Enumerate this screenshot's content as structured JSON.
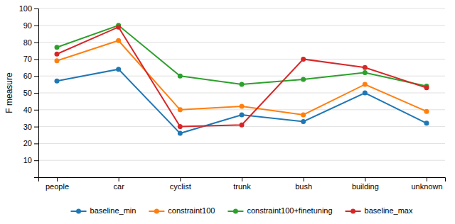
{
  "chart_data": {
    "type": "line",
    "categories": [
      "people",
      "car",
      "cyclist",
      "trunk",
      "bush",
      "building",
      "unknown"
    ],
    "series": [
      {
        "name": "baseline_min",
        "values": [
          57,
          64,
          26,
          37,
          33,
          50,
          32
        ]
      },
      {
        "name": "constraint100",
        "values": [
          69,
          81,
          40,
          42,
          37,
          55,
          39
        ]
      },
      {
        "name": "constraint100+finetuning",
        "values": [
          77,
          90,
          60,
          55,
          58,
          62,
          54
        ]
      },
      {
        "name": "baseline_max",
        "values": [
          73,
          89,
          30,
          31,
          70,
          65,
          53
        ]
      }
    ],
    "ylabel": "F measure",
    "ylim": [
      0,
      100
    ],
    "yticks": [
      10,
      20,
      30,
      40,
      50,
      60,
      70,
      80,
      90,
      100
    ],
    "grid": true,
    "legend": "bottom",
    "marker": "circle"
  }
}
